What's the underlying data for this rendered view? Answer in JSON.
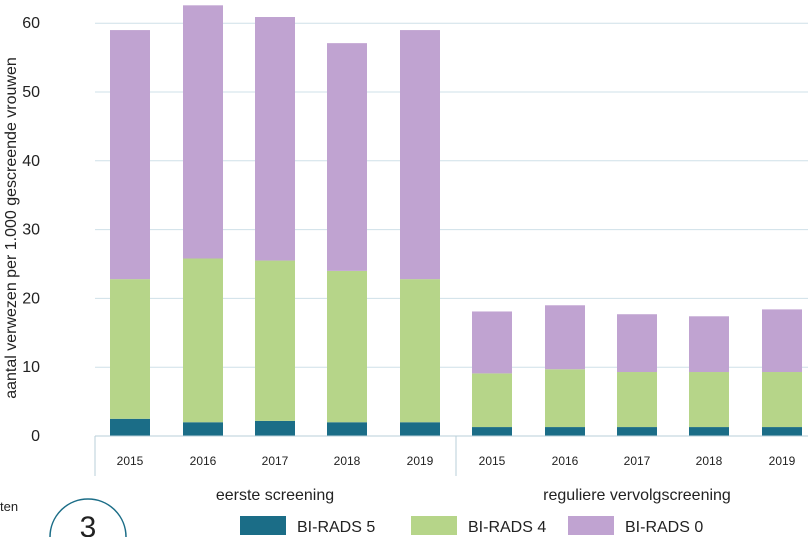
{
  "chart_data": {
    "type": "bar",
    "stacked": true,
    "ylabel": "aantal verwezen per 1.000 gescreende vrouwen",
    "ylim": [
      0,
      63
    ],
    "yticks": [
      0,
      10,
      20,
      30,
      40,
      50,
      60
    ],
    "grid": "horizontal",
    "groups": [
      {
        "label": "eerste screening",
        "categories": [
          "2015",
          "2016",
          "2017",
          "2018",
          "2019"
        ]
      },
      {
        "label": "reguliere vervolgscreening",
        "categories": [
          "2015",
          "2016",
          "2017",
          "2018",
          "2019"
        ]
      }
    ],
    "series": [
      {
        "name": "BI-RADS 5",
        "color": "#1b6d87",
        "values": [
          2.5,
          2.0,
          2.2,
          2.0,
          2.0,
          1.3,
          1.3,
          1.3,
          1.3,
          1.3
        ]
      },
      {
        "name": "BI-RADS 4",
        "color": "#b6d589",
        "values": [
          20.3,
          23.8,
          23.3,
          22.0,
          20.8,
          7.8,
          8.4,
          8.0,
          8.0,
          8.0
        ]
      },
      {
        "name": "BI-RADS 0",
        "color": "#c0a3d1",
        "values": [
          36.2,
          36.8,
          35.4,
          33.1,
          36.2,
          9.0,
          9.3,
          8.4,
          8.1,
          9.1
        ]
      }
    ],
    "legend_position": "bottom"
  },
  "fragments": {
    "cut_text": "ten",
    "badge": "3"
  }
}
